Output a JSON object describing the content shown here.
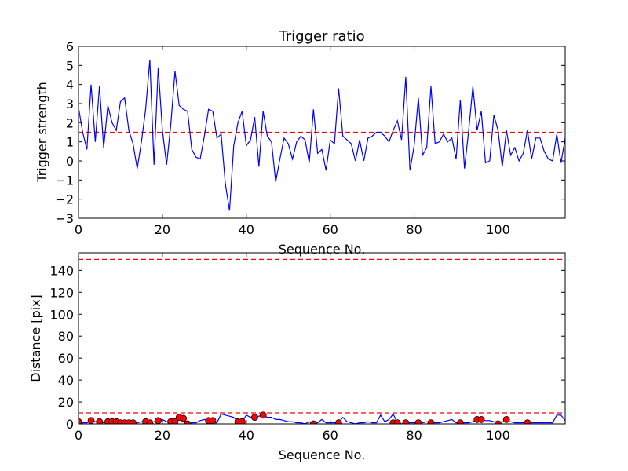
{
  "chart_data": [
    {
      "type": "line",
      "title": "Trigger ratio",
      "xlabel": "Sequence No.",
      "ylabel": "Trigger strength",
      "xlim": [
        0,
        116
      ],
      "ylim": [
        -3,
        6
      ],
      "xticks": [
        "0",
        "20",
        "40",
        "60",
        "80",
        "100"
      ],
      "yticks": [
        "−3",
        "−2",
        "−1",
        "0",
        "1",
        "2",
        "3",
        "4",
        "5",
        "6"
      ],
      "grid": false,
      "colors": {
        "series": "#0000ff",
        "threshold": "#ff0000"
      },
      "threshold": 1.5,
      "series": [
        {
          "values": [
            2.8,
            1.5,
            0.6,
            4.0,
            1.0,
            3.9,
            0.7,
            2.9,
            2.0,
            1.6,
            3.1,
            3.3,
            1.6,
            0.9,
            -0.4,
            1.0,
            2.7,
            5.3,
            -0.2,
            4.9,
            1.6,
            -0.2,
            1.9,
            4.7,
            2.9,
            2.7,
            2.6,
            0.6,
            0.2,
            0.1,
            1.3,
            2.7,
            2.6,
            1.2,
            1.4,
            -1.2,
            -2.6,
            0.8,
            2.0,
            2.6,
            0.8,
            1.1,
            2.3,
            -0.3,
            2.6,
            1.3,
            1.0,
            -1.1,
            0.1,
            1.2,
            0.9,
            0.1,
            1.0,
            1.3,
            1.1,
            -0.1,
            2.7,
            0.4,
            0.6,
            -0.5,
            1.1,
            0.9,
            3.8,
            1.3,
            1.1,
            0.9,
            0.0,
            1.1,
            0.0,
            1.2,
            1.3,
            1.5,
            1.5,
            1.3,
            1.0,
            1.6,
            2.1,
            1.1,
            4.4,
            -0.5,
            0.8,
            3.3,
            0.3,
            0.7,
            3.9,
            0.9,
            1.0,
            1.4,
            1.0,
            1.2,
            0.1,
            3.2,
            -0.4,
            1.6,
            3.9,
            1.6,
            2.6,
            -0.1,
            0.0,
            2.4,
            1.6,
            -0.3,
            1.6,
            0.3,
            0.7,
            0.0,
            0.4,
            1.6,
            0.1,
            1.2,
            1.2,
            0.5,
            0.1,
            0.0,
            1.4,
            -0.1,
            1.2
          ]
        }
      ]
    },
    {
      "type": "line",
      "title": "",
      "xlabel": "Sequence No.",
      "ylabel": "Distance [pix]",
      "xlim": [
        0,
        116
      ],
      "ylim": [
        0,
        156
      ],
      "xticks": [
        "0",
        "20",
        "40",
        "60",
        "80",
        "100"
      ],
      "yticks": [
        "0",
        "20",
        "40",
        "60",
        "80",
        "100",
        "120",
        "140"
      ],
      "grid": false,
      "colors": {
        "series": "#0000ff",
        "markers": "#ff0000",
        "threshold": "#ff0000"
      },
      "thresholds": [
        10,
        150
      ],
      "series": [
        {
          "values": [
            2,
            1,
            1,
            3,
            2,
            2,
            1,
            2,
            2,
            2,
            1,
            2,
            1,
            1,
            1,
            2,
            2,
            1,
            2,
            3,
            4,
            2,
            2,
            2,
            6,
            5,
            0,
            1,
            1,
            3,
            4,
            3,
            1,
            1,
            9,
            8,
            7,
            6,
            2,
            2,
            8,
            6,
            7,
            7,
            8,
            6,
            6,
            4,
            4,
            3,
            2,
            2,
            1,
            1,
            0,
            2,
            0,
            1,
            4,
            1,
            1,
            1,
            1,
            6,
            2,
            1,
            0,
            1,
            1,
            2,
            1,
            1,
            8,
            2,
            4,
            9,
            1,
            0,
            1,
            1,
            1,
            1,
            1,
            2,
            1,
            1,
            1,
            2,
            3,
            4,
            1,
            1,
            1,
            1,
            2,
            4,
            4,
            3,
            3,
            2,
            1,
            2,
            2,
            2,
            1,
            1,
            1,
            1,
            1,
            1,
            1,
            1,
            1,
            1,
            8,
            8,
            3
          ]
        },
        {
          "markers_x": [
            0,
            3,
            5,
            7,
            8,
            9,
            10,
            11,
            12,
            13,
            16,
            17,
            19,
            22,
            23,
            24,
            25,
            26,
            31,
            32,
            38,
            39,
            42,
            44,
            56,
            62,
            75,
            76,
            78,
            81,
            84,
            91,
            95,
            96,
            100,
            102,
            107
          ],
          "markers_y": [
            2,
            3,
            2,
            2,
            2,
            2,
            1,
            1,
            1,
            1,
            2,
            1,
            3,
            2,
            2,
            6,
            5,
            0,
            3,
            3,
            2,
            2,
            6,
            8,
            0,
            1,
            1,
            1,
            1,
            1,
            1,
            1,
            4,
            4,
            0,
            4,
            1
          ]
        }
      ]
    }
  ]
}
